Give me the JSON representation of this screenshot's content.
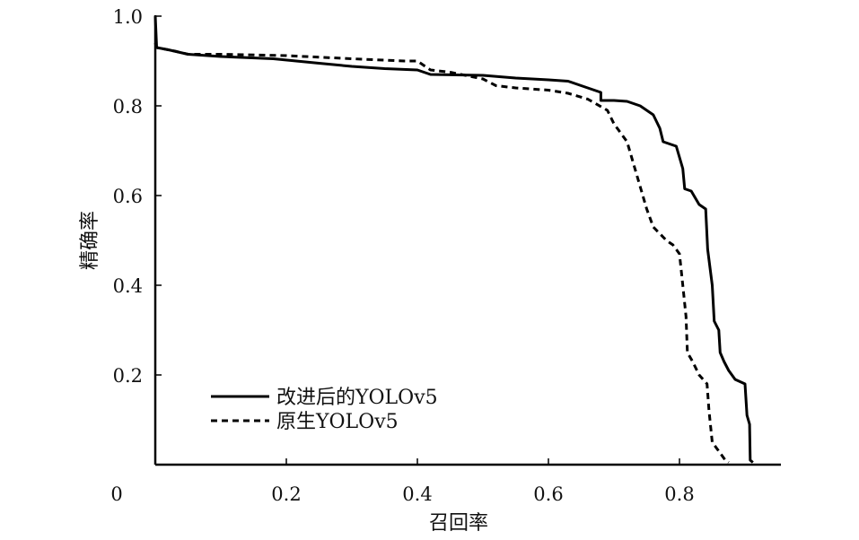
{
  "chart_data": {
    "type": "line",
    "title": "",
    "xlabel": "召回率",
    "ylabel": "精确率",
    "xlim": [
      0,
      0.95
    ],
    "ylim": [
      0,
      1.0
    ],
    "grid": false,
    "legend_placement": "bottom-left",
    "origin_label": "0",
    "xticks": [
      0.2,
      0.4,
      0.6,
      0.8
    ],
    "xtick_labels": [
      "0.2",
      "0.4",
      "0.6",
      "0.8"
    ],
    "yticks": [
      0.2,
      0.4,
      0.6,
      0.8,
      1.0
    ],
    "ytick_labels": [
      "0.2",
      "0.4",
      "0.6",
      "0.8",
      "1.0"
    ],
    "series": [
      {
        "name": "改进后的YOLOv5",
        "style": "solid",
        "color": "#000000",
        "points": [
          [
            0.0,
            1.0
          ],
          [
            0.002,
            0.93
          ],
          [
            0.02,
            0.925
          ],
          [
            0.05,
            0.915
          ],
          [
            0.1,
            0.91
          ],
          [
            0.18,
            0.905
          ],
          [
            0.25,
            0.895
          ],
          [
            0.3,
            0.888
          ],
          [
            0.35,
            0.883
          ],
          [
            0.4,
            0.88
          ],
          [
            0.42,
            0.87
          ],
          [
            0.5,
            0.868
          ],
          [
            0.55,
            0.862
          ],
          [
            0.6,
            0.858
          ],
          [
            0.63,
            0.855
          ],
          [
            0.65,
            0.845
          ],
          [
            0.68,
            0.83
          ],
          [
            0.68,
            0.812
          ],
          [
            0.7,
            0.812
          ],
          [
            0.72,
            0.81
          ],
          [
            0.74,
            0.8
          ],
          [
            0.76,
            0.78
          ],
          [
            0.77,
            0.75
          ],
          [
            0.775,
            0.72
          ],
          [
            0.795,
            0.71
          ],
          [
            0.805,
            0.66
          ],
          [
            0.808,
            0.615
          ],
          [
            0.818,
            0.61
          ],
          [
            0.83,
            0.58
          ],
          [
            0.84,
            0.57
          ],
          [
            0.843,
            0.48
          ],
          [
            0.85,
            0.4
          ],
          [
            0.853,
            0.32
          ],
          [
            0.86,
            0.3
          ],
          [
            0.862,
            0.25
          ],
          [
            0.868,
            0.23
          ],
          [
            0.875,
            0.21
          ],
          [
            0.88,
            0.2
          ],
          [
            0.885,
            0.19
          ],
          [
            0.9,
            0.18
          ],
          [
            0.903,
            0.11
          ],
          [
            0.907,
            0.09
          ],
          [
            0.908,
            0.01
          ],
          [
            0.912,
            0.005
          ]
        ]
      },
      {
        "name": "原生YOLOv5",
        "style": "dashed",
        "color": "#000000",
        "points": [
          [
            0.0,
            0.94
          ],
          [
            0.002,
            0.93
          ],
          [
            0.03,
            0.922
          ],
          [
            0.05,
            0.915
          ],
          [
            0.1,
            0.915
          ],
          [
            0.2,
            0.912
          ],
          [
            0.3,
            0.905
          ],
          [
            0.38,
            0.9
          ],
          [
            0.4,
            0.9
          ],
          [
            0.42,
            0.88
          ],
          [
            0.45,
            0.875
          ],
          [
            0.5,
            0.86
          ],
          [
            0.52,
            0.845
          ],
          [
            0.55,
            0.84
          ],
          [
            0.6,
            0.835
          ],
          [
            0.63,
            0.828
          ],
          [
            0.66,
            0.815
          ],
          [
            0.69,
            0.79
          ],
          [
            0.7,
            0.76
          ],
          [
            0.71,
            0.74
          ],
          [
            0.72,
            0.72
          ],
          [
            0.73,
            0.67
          ],
          [
            0.74,
            0.62
          ],
          [
            0.75,
            0.57
          ],
          [
            0.76,
            0.53
          ],
          [
            0.78,
            0.5
          ],
          [
            0.79,
            0.49
          ],
          [
            0.8,
            0.47
          ],
          [
            0.805,
            0.4
          ],
          [
            0.81,
            0.33
          ],
          [
            0.812,
            0.25
          ],
          [
            0.82,
            0.23
          ],
          [
            0.83,
            0.2
          ],
          [
            0.842,
            0.18
          ],
          [
            0.845,
            0.12
          ],
          [
            0.85,
            0.05
          ],
          [
            0.86,
            0.03
          ],
          [
            0.87,
            0.01
          ],
          [
            0.875,
            0.005
          ]
        ]
      }
    ]
  }
}
